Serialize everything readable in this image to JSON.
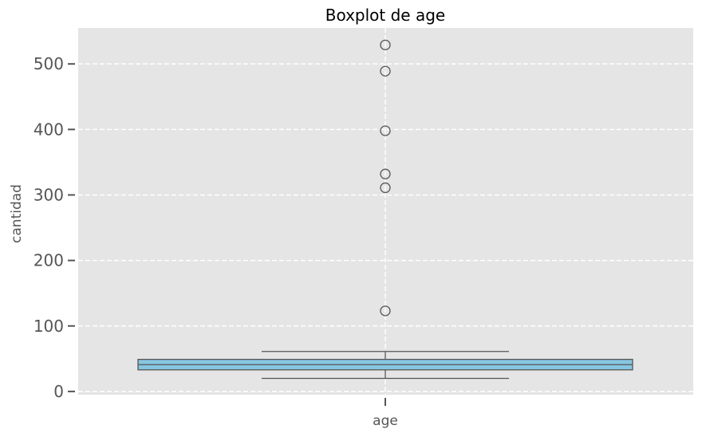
{
  "chart_data": {
    "type": "boxplot",
    "title": "Boxplot de age",
    "xlabel": "",
    "ylabel": "cantidad",
    "categories": [
      "age"
    ],
    "ylim": [
      -5,
      555
    ],
    "yticks": [
      0,
      100,
      200,
      300,
      400,
      500
    ],
    "ytick_labels": [
      "0",
      "100",
      "200",
      "300",
      "400",
      "500"
    ],
    "grid": true,
    "box": {
      "category": "age",
      "whisker_low": 20,
      "q1": 33,
      "median": 41,
      "q3": 49,
      "whisker_high": 61,
      "outliers": [
        123,
        311,
        332,
        398,
        489,
        529
      ]
    },
    "colors": {
      "plot_background": "#e5e5e5",
      "grid": "#ffffff",
      "box_fill": "#87c6e1",
      "box_edge": "#555555",
      "tick_text": "#555555"
    }
  }
}
